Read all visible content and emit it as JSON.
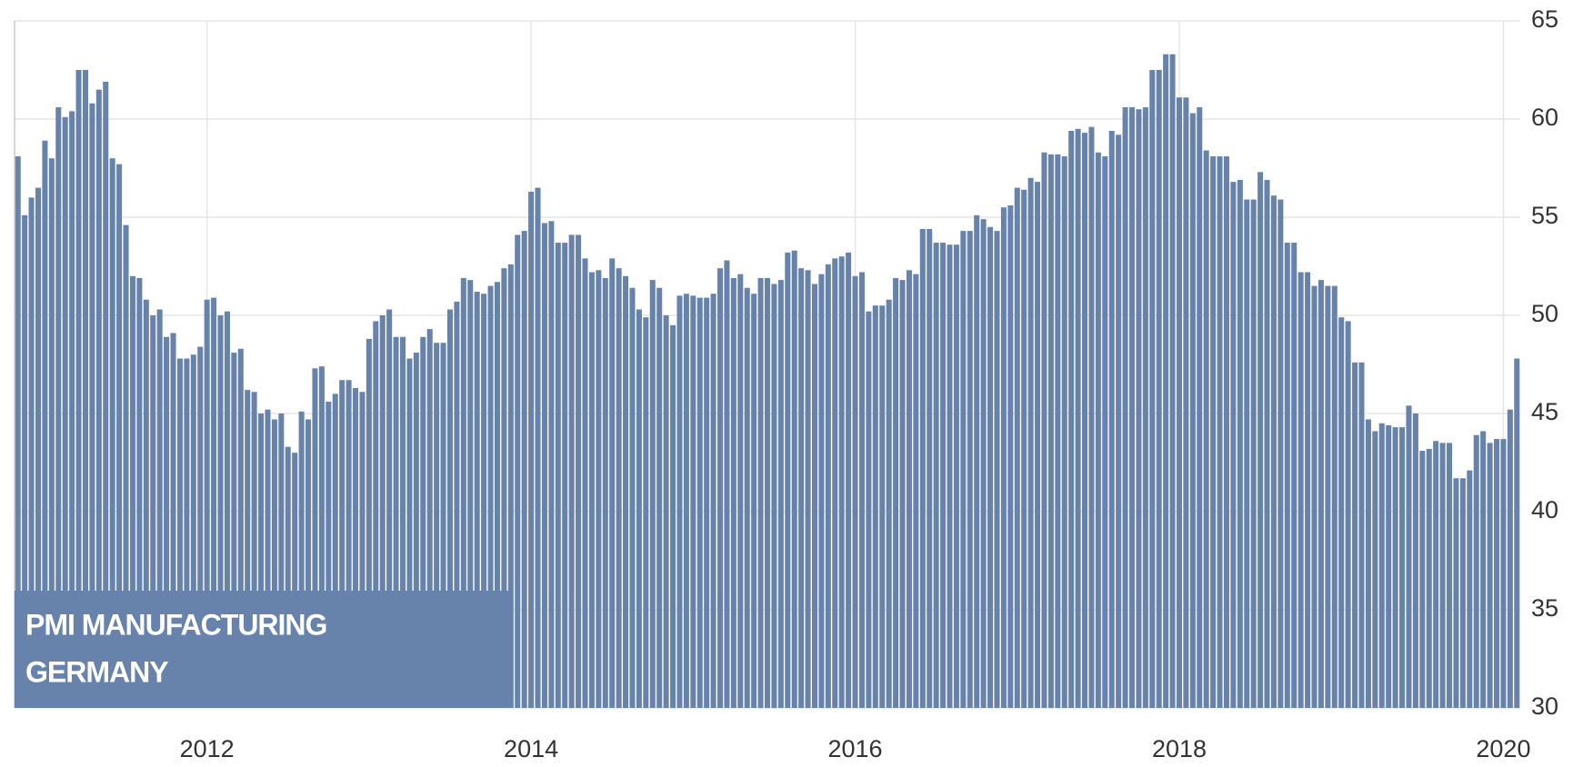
{
  "chart_data": {
    "type": "bar",
    "title": "PMI MANUFACTURING",
    "subtitle": "GERMANY",
    "color": "#6783ab",
    "grid": true,
    "ylim": [
      30,
      65
    ],
    "yticks": [
      30,
      35,
      40,
      45,
      50,
      55,
      60,
      65
    ],
    "categories": [
      null,
      null,
      null,
      null,
      null,
      null,
      null,
      null,
      null,
      null,
      null,
      null,
      null,
      null,
      null,
      null,
      null,
      null,
      null,
      null,
      null,
      null,
      null,
      null,
      null,
      null,
      null,
      null,
      "2012",
      null,
      null,
      null,
      null,
      null,
      null,
      null,
      null,
      null,
      null,
      null,
      null,
      null,
      null,
      null,
      null,
      null,
      null,
      null,
      null,
      null,
      null,
      null,
      null,
      null,
      null,
      null,
      null,
      null,
      null,
      null,
      null,
      null,
      null,
      null,
      null,
      null,
      null,
      null,
      null,
      null,
      null,
      null,
      null,
      null,
      null,
      null,
      "2014",
      null,
      null,
      null,
      null,
      null,
      null,
      null,
      null,
      null,
      null,
      null,
      null,
      null,
      null,
      null,
      null,
      null,
      null,
      null,
      null,
      null,
      null,
      null,
      null,
      null,
      null,
      null,
      null,
      null,
      null,
      null,
      null,
      null,
      null,
      null,
      null,
      null,
      null,
      null,
      null,
      null,
      null,
      null,
      null,
      null,
      null,
      null,
      "2016",
      null,
      null,
      null,
      null,
      null,
      null,
      null,
      null,
      null,
      null,
      null,
      null,
      null,
      null,
      null,
      null,
      null,
      null,
      null,
      null,
      null,
      null,
      null,
      null,
      null,
      null,
      null,
      null,
      null,
      null,
      null,
      null,
      null,
      null,
      null,
      null,
      null,
      null,
      null,
      null,
      null,
      null,
      null,
      null,
      null,
      null,
      null,
      "2018",
      null,
      null,
      null,
      null,
      null,
      null,
      null,
      null,
      null,
      null,
      null,
      null,
      null,
      null,
      null,
      null,
      null,
      null,
      null,
      null,
      null,
      null,
      null,
      null,
      null,
      null,
      null,
      null,
      null,
      null,
      null,
      null,
      null,
      null,
      null,
      null,
      null,
      null,
      null,
      null,
      null,
      null,
      null,
      null,
      null,
      null,
      null,
      "2020",
      null,
      null
    ],
    "values": [
      58.1,
      55.1,
      56.0,
      56.5,
      58.9,
      58.0,
      60.6,
      60.1,
      60.4,
      62.5,
      62.5,
      60.8,
      61.5,
      61.9,
      58.0,
      57.7,
      54.6,
      52.0,
      51.9,
      50.8,
      50.0,
      50.3,
      48.9,
      49.1,
      47.8,
      47.8,
      48.0,
      48.4,
      50.8,
      50.9,
      50.0,
      50.2,
      48.1,
      48.3,
      46.2,
      46.1,
      45.0,
      45.2,
      44.7,
      45.0,
      43.3,
      43.0,
      45.1,
      44.7,
      47.3,
      47.4,
      45.6,
      46.0,
      46.7,
      46.7,
      46.3,
      46.1,
      48.8,
      49.7,
      50.0,
      50.3,
      48.9,
      48.9,
      47.8,
      48.1,
      48.9,
      49.3,
      48.6,
      48.6,
      50.3,
      50.7,
      51.9,
      51.8,
      51.2,
      51.1,
      51.5,
      51.7,
      52.4,
      52.6,
      54.1,
      54.3,
      56.3,
      56.5,
      54.7,
      54.8,
      53.7,
      53.7,
      54.1,
      54.1,
      52.9,
      52.2,
      52.3,
      51.9,
      52.9,
      52.4,
      52.0,
      51.4,
      50.3,
      49.9,
      51.8,
      51.4,
      50.0,
      49.5,
      51.0,
      51.1,
      51.0,
      50.9,
      50.9,
      51.1,
      52.4,
      52.8,
      51.9,
      52.1,
      51.4,
      51.1,
      51.9,
      51.9,
      51.6,
      51.8,
      53.2,
      53.3,
      52.4,
      52.3,
      51.6,
      52.1,
      52.6,
      52.9,
      53.0,
      53.2,
      52.0,
      52.2,
      50.2,
      50.5,
      50.5,
      50.8,
      51.9,
      51.8,
      52.3,
      52.1,
      54.4,
      54.4,
      53.7,
      53.7,
      53.6,
      53.6,
      54.3,
      54.3,
      55.1,
      54.9,
      54.5,
      54.3,
      55.5,
      55.6,
      56.5,
      56.4,
      57.0,
      56.8,
      58.3,
      58.2,
      58.2,
      58.1,
      59.4,
      59.5,
      59.3,
      59.6,
      58.3,
      58.1,
      59.4,
      59.2,
      60.6,
      60.6,
      60.5,
      60.6,
      62.5,
      62.5,
      63.3,
      63.3,
      61.1,
      61.1,
      60.3,
      60.6,
      58.4,
      58.1,
      58.1,
      58.1,
      56.8,
      56.9,
      55.9,
      55.9,
      57.3,
      56.9,
      56.1,
      55.9,
      53.7,
      53.7,
      52.2,
      52.2,
      51.5,
      51.8,
      51.5,
      51.5,
      49.9,
      49.7,
      47.6,
      47.6,
      44.7,
      44.1,
      44.5,
      44.4,
      44.3,
      44.3,
      45.4,
      45.0,
      43.1,
      43.2,
      43.6,
      43.5,
      43.5,
      41.7,
      41.7,
      42.1,
      43.9,
      44.1,
      43.5,
      43.7,
      43.7,
      45.2,
      47.8
    ]
  }
}
